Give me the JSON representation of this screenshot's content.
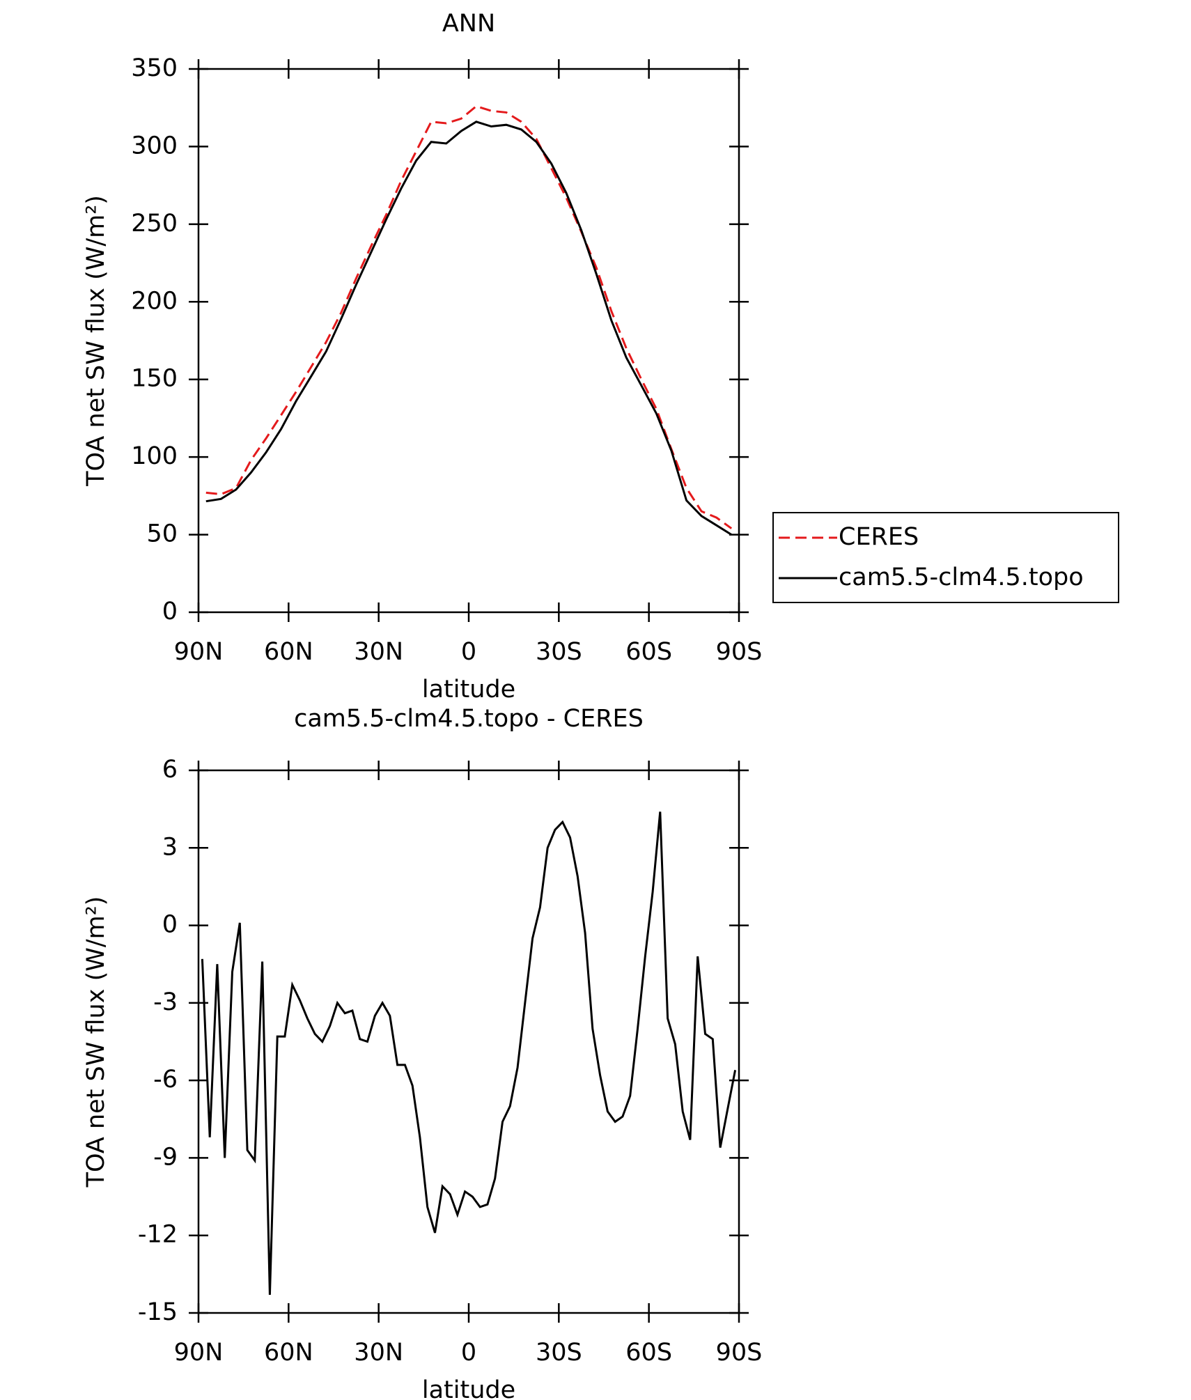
{
  "chart_data": [
    {
      "type": "line",
      "title": "ANN",
      "xlabel": "latitude",
      "ylabel": "TOA net SW flux (W/m²)",
      "x": [
        87.5,
        82.5,
        77.5,
        72.5,
        67.5,
        62.5,
        57.5,
        52.5,
        47.5,
        42.5,
        37.5,
        32.5,
        27.5,
        22.5,
        17.5,
        12.5,
        7.5,
        2.5,
        -2.5,
        -7.5,
        -12.5,
        -17.5,
        -22.5,
        -27.5,
        -32.5,
        -37.5,
        -42.5,
        -47.5,
        -52.5,
        -57.5,
        -62.5,
        -67.5,
        -72.5,
        -77.5,
        -82.5,
        -87.5
      ],
      "series": [
        {
          "name": "CERES",
          "color": "#e41a1c",
          "dashed": true,
          "values": [
            77,
            76,
            80,
            98,
            112,
            127,
            142,
            158,
            174,
            193,
            215,
            236,
            256,
            278,
            297,
            316,
            315,
            318,
            326,
            323,
            322,
            316,
            305,
            286,
            267,
            245,
            222,
            194,
            170,
            150,
            131,
            105,
            80,
            65,
            61,
            54
          ]
        },
        {
          "name": "cam5.5-clm4.5.topo",
          "color": "#000000",
          "dashed": false,
          "values": [
            71.5,
            73,
            79,
            90,
            103,
            118,
            136,
            152,
            168,
            189,
            211,
            232,
            253,
            273,
            291,
            303,
            302,
            310,
            316,
            313,
            314,
            311,
            303,
            289,
            270,
            246,
            218,
            188,
            164,
            146,
            128,
            104,
            72,
            62,
            56,
            50
          ]
        }
      ],
      "xlim": [
        90,
        -90
      ],
      "ylim": [
        0,
        350
      ],
      "xticks": [
        {
          "value": 90,
          "label": "90N"
        },
        {
          "value": 60,
          "label": "60N"
        },
        {
          "value": 30,
          "label": "30N"
        },
        0,
        {
          "value": -30,
          "label": "30S"
        },
        {
          "value": -60,
          "label": "60S"
        },
        {
          "value": -90,
          "label": "90S"
        }
      ],
      "yticks": [
        0,
        50,
        100,
        150,
        200,
        250,
        300,
        350
      ],
      "legend": "right"
    },
    {
      "type": "line",
      "title": "cam5.5-clm4.5.topo - CERES",
      "xlabel": "latitude",
      "ylabel": "TOA net SW flux (W/m²)",
      "x": [
        88.75,
        86.25,
        83.75,
        81.25,
        78.75,
        76.25,
        73.75,
        71.25,
        68.75,
        66.25,
        63.75,
        61.25,
        58.75,
        56.25,
        53.75,
        51.25,
        48.75,
        46.25,
        43.75,
        41.25,
        38.75,
        36.25,
        33.75,
        31.25,
        28.75,
        26.25,
        23.75,
        21.25,
        18.75,
        16.25,
        13.75,
        11.25,
        8.75,
        6.25,
        3.75,
        1.25,
        -1.25,
        -3.75,
        -6.25,
        -8.75,
        -11.25,
        -13.75,
        -16.25,
        -18.75,
        -21.25,
        -23.75,
        -26.25,
        -28.75,
        -31.25,
        -33.75,
        -36.25,
        -38.75,
        -41.25,
        -43.75,
        -46.25,
        -48.75,
        -51.25,
        -53.75,
        -56.25,
        -58.75,
        -61.25,
        -63.75,
        -66.25,
        -68.75,
        -71.25,
        -73.75,
        -76.25,
        -78.75,
        -81.25,
        -83.75,
        -86.25,
        -88.75
      ],
      "series": [
        {
          "color": "#000000",
          "dashed": false,
          "values": [
            -1.3,
            -8.2,
            -1.5,
            -9,
            -1.8,
            0.1,
            -8.7,
            -9.1,
            -1.4,
            -14.3,
            -4.3,
            -4.3,
            -2.3,
            -2.9,
            -3.6,
            -4.2,
            -4.5,
            -3.9,
            -3.0,
            -3.4,
            -3.3,
            -4.4,
            -4.5,
            -3.5,
            -3.0,
            -3.5,
            -5.4,
            -5.4,
            -6.2,
            -8.2,
            -10.9,
            -11.9,
            -10.1,
            -10.4,
            -11.2,
            -10.3,
            -10.5,
            -10.9,
            -10.8,
            -9.8,
            -7.6,
            -7,
            -5.5,
            -3,
            -0.5,
            0.7,
            3,
            3.7,
            4,
            3.4,
            1.9,
            -0.3,
            -4,
            -5.8,
            -7.2,
            -7.6,
            -7.4,
            -6.6,
            -4,
            -1.2,
            1.3,
            4.4,
            -3.6,
            -4.6,
            -7.2,
            -8.3,
            -1.2,
            -4.2,
            -4.4,
            -8.6,
            -7.1,
            -5.6
          ]
        }
      ],
      "xlim": [
        90,
        -90
      ],
      "ylim": [
        -15,
        6
      ],
      "xticks": [
        {
          "value": 90,
          "label": "90N"
        },
        {
          "value": 60,
          "label": "60N"
        },
        {
          "value": 30,
          "label": "30N"
        },
        0,
        {
          "value": -30,
          "label": "30S"
        },
        {
          "value": -60,
          "label": "60S"
        },
        {
          "value": -90,
          "label": "90S"
        }
      ],
      "yticks": [
        -15,
        -12,
        -9,
        -6,
        -3,
        0,
        3,
        6
      ]
    }
  ]
}
